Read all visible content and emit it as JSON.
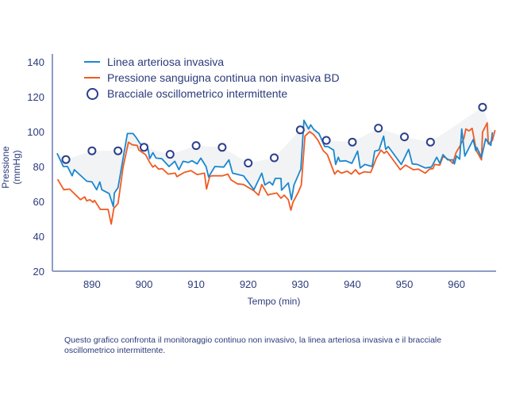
{
  "chart_data": {
    "type": "line",
    "xlabel": "Tempo (min)",
    "ylabel": "Pressione  (mmHg)",
    "xlim": [
      882.4,
      967.6
    ],
    "ylim": [
      20,
      140
    ],
    "xticks": [
      890,
      900,
      910,
      920,
      930,
      940,
      950,
      960
    ],
    "yticks": [
      20,
      40,
      60,
      80,
      100,
      120,
      140
    ],
    "grid": false,
    "legend_position": "top-left",
    "colors": {
      "invasive": "#1b87cf",
      "noninvasive": "#f15a22",
      "cuff": "#2c3e8c",
      "band": "#f1f3f4",
      "axis": "#8e9cc6"
    },
    "series": [
      {
        "name": "Linea arteriosa invasiva",
        "kind": "line",
        "x": [
          883.3,
          884.5,
          885.3,
          886.2,
          886.6,
          889,
          890,
          890.9,
          891.5,
          891.9,
          893.3,
          894.1,
          894.3,
          895,
          896.8,
          897.9,
          898.5,
          899.3,
          900.6,
          901.1,
          901.7,
          902.3,
          903.4,
          904.8,
          905.9,
          906.7,
          907.5,
          908.5,
          909.2,
          910.2,
          910.9,
          911.9,
          912.4,
          913.6,
          915.3,
          916.3,
          917,
          919.1,
          921.1,
          922.6,
          923.2,
          924.1,
          924.7,
          925.2,
          926.3,
          926.4,
          927.7,
          928.3,
          928.8,
          930.1,
          930.7,
          931.6,
          932,
          932.6,
          933.6,
          934.7,
          935.3,
          936.4,
          936.8,
          937.3,
          937.6,
          938.7,
          939.9,
          941,
          941.5,
          942.4,
          943.8,
          944.3,
          945.1,
          946,
          946.4,
          946.9,
          949.4,
          950.8,
          951.5,
          952.5,
          954,
          955.2,
          956.2,
          956.8,
          957.4,
          958.3,
          959.3,
          959.6,
          960,
          960.6,
          961,
          961.6,
          963.2,
          963.7,
          963.9,
          964.8,
          965.6,
          966.1,
          966.6,
          966.9
        ],
        "y": [
          87.6,
          80,
          80,
          74.7,
          78.2,
          71.6,
          71.2,
          66.7,
          71.2,
          66.7,
          64.5,
          57,
          64.8,
          67.9,
          98.9,
          98.9,
          96.6,
          92.9,
          92.4,
          84.5,
          87.9,
          84.8,
          84.5,
          80,
          83,
          78.2,
          83,
          82.3,
          83.3,
          81.5,
          84.8,
          80,
          74,
          80,
          79.7,
          83.8,
          76.2,
          74.7,
          66.7,
          76.2,
          69.4,
          71.2,
          69.4,
          73.2,
          73.2,
          66.4,
          70.6,
          61,
          69.4,
          78.5,
          106.5,
          101.5,
          103.9,
          101.2,
          98.9,
          91.4,
          91.4,
          89.4,
          81.2,
          85.3,
          83,
          83.3,
          81.8,
          88.8,
          79.2,
          81.2,
          80,
          88.8,
          89.4,
          97.4,
          89.8,
          91.4,
          81.2,
          89.8,
          81.5,
          81.2,
          79.2,
          79.7,
          85.3,
          81.8,
          86.8,
          83.8,
          83.8,
          81.5,
          86,
          84.2,
          101.5,
          86,
          95.4,
          89.1,
          90.9,
          85.3,
          95.9,
          93.6,
          92.1,
          99.7
        ]
      },
      {
        "name": "Pressione sanguigna continua non invasiva BD",
        "kind": "line",
        "x": [
          883.4,
          884.6,
          885.7,
          887.8,
          888.6,
          889,
          889.6,
          890.2,
          890.5,
          891.6,
          893.1,
          893.7,
          894.2,
          895,
          896,
          897,
          897.8,
          898.7,
          899,
          900.3,
          901.1,
          901.7,
          902.1,
          902.8,
          903.5,
          904.6,
          906,
          906.3,
          907.7,
          909,
          910.2,
          911.6,
          912,
          912.6,
          913,
          915.1,
          916.1,
          916.7,
          917.9,
          919.1,
          921.1,
          922,
          922.6,
          923.8,
          924.2,
          925.5,
          926.3,
          926.9,
          927.7,
          928.2,
          928.6,
          929.6,
          930.2,
          930.9,
          931.8,
          932.5,
          933.4,
          934.4,
          935.2,
          936.6,
          937.2,
          937.9,
          939,
          939.8,
          940.6,
          941.3,
          942.3,
          943.5,
          943.8,
          944.6,
          945.5,
          946.1,
          946.6,
          949.2,
          950.2,
          951.7,
          952.7,
          954,
          954.8,
          955.5,
          955.8,
          956.8,
          957.4,
          958.6,
          959.3,
          959.9,
          960.5,
          961.4,
          961.8,
          962.4,
          963,
          963.8,
          964.8,
          965,
          965.9,
          966.1,
          966.9,
          967.4
        ],
        "y": [
          72.7,
          66.7,
          67.1,
          61,
          62.6,
          60.3,
          61,
          59.5,
          60.6,
          55.4,
          55.4,
          47,
          56,
          58.8,
          80,
          93.9,
          92.4,
          92.1,
          89.4,
          86.8,
          82.3,
          79.7,
          80.7,
          78.5,
          78.8,
          75.7,
          76.2,
          74.2,
          76.6,
          77.7,
          75.4,
          76.2,
          67.1,
          74.2,
          74.7,
          74.7,
          75.7,
          72.4,
          70.1,
          69.7,
          66.1,
          63.6,
          69.7,
          63.6,
          64.1,
          64.8,
          61.8,
          63.6,
          61,
          55,
          59.5,
          65.2,
          69.4,
          97.4,
          100,
          98.5,
          95.1,
          89.1,
          86.8,
          75.7,
          77.7,
          76.2,
          77.3,
          75.7,
          78.2,
          75.7,
          77,
          76.6,
          78.5,
          84.8,
          89.4,
          87.6,
          88.8,
          78.2,
          80.8,
          78.2,
          78.5,
          76.2,
          78.5,
          78.8,
          81.2,
          80.8,
          85.8,
          83.8,
          81.8,
          87.9,
          90.9,
          95.9,
          101.5,
          100.4,
          101.9,
          89.1,
          83.8,
          99.7,
          105,
          92.9,
          95.1,
          100.9
        ]
      },
      {
        "name": "Bracciale oscillometrico intermittente",
        "kind": "scatter",
        "x": [
          885,
          890,
          895,
          900,
          905,
          910,
          915,
          920,
          925,
          930,
          935,
          940,
          945,
          950,
          955,
          965
        ],
        "y": [
          84,
          89,
          89,
          91,
          87,
          92,
          91,
          82,
          85,
          101,
          95,
          94,
          102,
          97,
          94,
          114
        ]
      }
    ]
  },
  "caption": "Questo grafico confronta il monitoraggio continuo non invasivo, la linea arteriosa invasiva e il bracciale oscillometrico intermittente."
}
